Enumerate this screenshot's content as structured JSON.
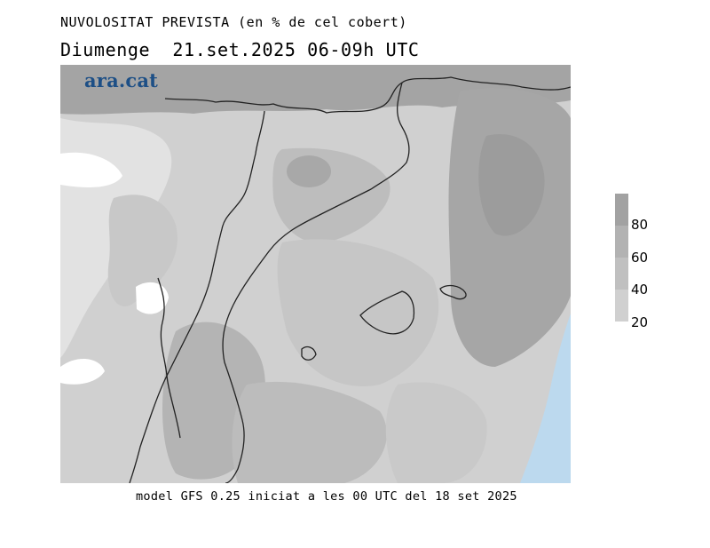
{
  "header": {
    "title": "NUVOLOSITAT PREVISTA (en % de cel cobert)",
    "subtitle": "Diumenge  21.set.2025 06-09h UTC"
  },
  "logo": {
    "text": "ara.cat",
    "color": "#1d4f86"
  },
  "legend": {
    "ticks": [
      "80",
      "60",
      "40",
      "20"
    ],
    "colors": [
      "#a2a2a2",
      "#b2b2b2",
      "#c0c0c0",
      "#d0d0d0",
      "#dedede"
    ]
  },
  "map": {
    "colors": {
      "lightest": "#e6e6e6",
      "light": "#d4d4d4",
      "mid": "#c4c4c4",
      "dark": "#b0b0b0",
      "darker": "#a4a4a4",
      "clear": "#ffffff",
      "sea_blue": "#bcd9ee"
    }
  },
  "footer": {
    "text": "model GFS 0.25 iniciat a les 00 UTC del 18 set 2025"
  }
}
